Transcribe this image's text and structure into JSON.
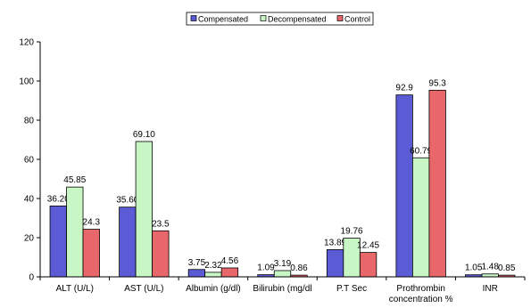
{
  "chart_data": {
    "type": "bar",
    "title": "",
    "xlabel": "",
    "ylabel": "",
    "ylim": [
      0,
      120
    ],
    "yticks": [
      0,
      20,
      40,
      60,
      80,
      100,
      120
    ],
    "grid": false,
    "legend": "top-center",
    "categories": [
      [
        "ALT (U/L)"
      ],
      [
        "AST (U/L)"
      ],
      [
        "Albumin (g/dl)"
      ],
      [
        "Bilirubin (mg/dl"
      ],
      [
        "P.T  Sec"
      ],
      [
        "Prothrombin",
        "concentration %"
      ],
      [
        "INR"
      ]
    ],
    "series": [
      {
        "name": "Compensated",
        "color": "#5b5bd6",
        "values": [
          36.2,
          35.6,
          3.75,
          1.09,
          13.89,
          92.9,
          1.05
        ],
        "labels": [
          "36.20",
          "35.60",
          "3.75",
          "1.09",
          "13.89",
          "92.9",
          "1.05"
        ]
      },
      {
        "name": "Decompensated",
        "color": "#c8f7c5",
        "values": [
          45.85,
          69.1,
          2.32,
          3.19,
          19.76,
          60.79,
          1.48
        ],
        "labels": [
          "45.85",
          "69.10",
          "2.32",
          "3.19",
          "19.76",
          "60.79",
          "1.48"
        ]
      },
      {
        "name": "Control",
        "color": "#e8676a",
        "values": [
          24.3,
          23.5,
          4.56,
          0.86,
          12.45,
          95.3,
          0.85
        ],
        "labels": [
          "24.3",
          "23.5",
          "4.56",
          "0.86",
          "12.45",
          "95.3",
          "0.85"
        ]
      }
    ]
  }
}
